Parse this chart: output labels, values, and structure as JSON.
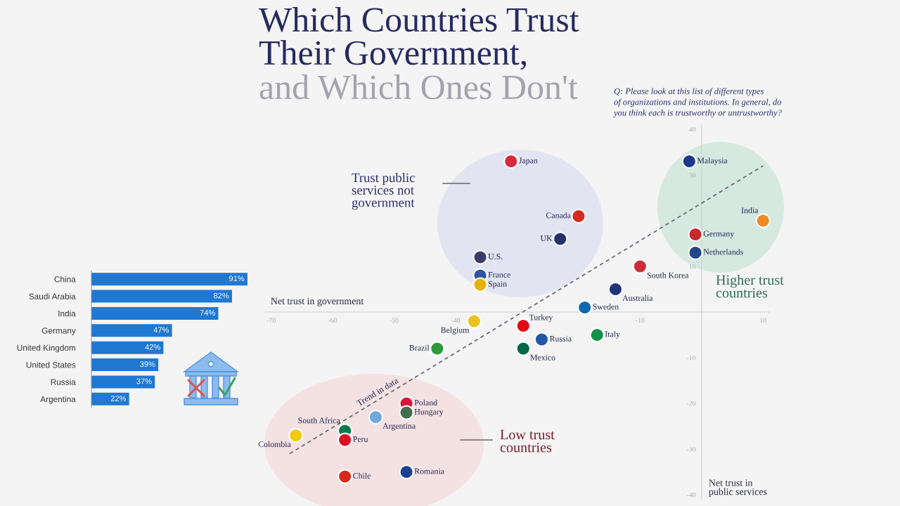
{
  "chart_data": [
    {
      "type": "scatter",
      "title": "Which Countries Trust\nTheir Government,",
      "subtitle": "and Which Ones Don't",
      "xlabel": "Net trust in government",
      "ylabel": "Net trust in\npublic services",
      "xlim": [
        -71,
        11
      ],
      "ylim": [
        -41,
        41
      ],
      "xticks": [
        -70,
        -60,
        -50,
        -40,
        -10,
        10
      ],
      "yticks": [
        -40,
        -30,
        -20,
        -10,
        10,
        30,
        40
      ],
      "marker": "circle",
      "series": [
        {
          "name": "Japan",
          "color": "#d8283a",
          "x": [
            -31
          ],
          "values": [
            33
          ]
        },
        {
          "name": "Malaysia",
          "color": "#1d3a8a",
          "x": [
            -2
          ],
          "values": [
            33
          ]
        },
        {
          "name": "Canada",
          "color": "#d52b1e",
          "x": [
            -20
          ],
          "values": [
            21
          ]
        },
        {
          "name": "UK",
          "color": "#24336b",
          "x": [
            -23
          ],
          "values": [
            16
          ]
        },
        {
          "name": "India",
          "color": "#f08a24",
          "x": [
            10
          ],
          "values": [
            20
          ]
        },
        {
          "name": "Germany",
          "color": "#c9282d",
          "x": [
            -1
          ],
          "values": [
            17
          ]
        },
        {
          "name": "U.S.",
          "color": "#3c3b6e",
          "x": [
            -36
          ],
          "values": [
            12
          ]
        },
        {
          "name": "France",
          "color": "#2e55a6",
          "x": [
            -36
          ],
          "values": [
            8
          ]
        },
        {
          "name": "Netherlands",
          "color": "#21468b",
          "x": [
            -1
          ],
          "values": [
            13
          ]
        },
        {
          "name": "Spain",
          "color": "#e8b10e",
          "x": [
            -36
          ],
          "values": [
            6
          ]
        },
        {
          "name": "South Korea",
          "color": "#cd2e3a",
          "x": [
            -10
          ],
          "values": [
            10
          ]
        },
        {
          "name": "Australia",
          "color": "#22357a",
          "x": [
            -14
          ],
          "values": [
            5
          ]
        },
        {
          "name": "Sweden",
          "color": "#1168b0",
          "x": [
            -19
          ],
          "values": [
            1
          ]
        },
        {
          "name": "Belgium",
          "color": "#e8c21c",
          "x": [
            -37
          ],
          "values": [
            -2
          ]
        },
        {
          "name": "Turkey",
          "color": "#e30a17",
          "x": [
            -29
          ],
          "values": [
            -3
          ]
        },
        {
          "name": "Italy",
          "color": "#129247",
          "x": [
            -17
          ],
          "values": [
            -5
          ]
        },
        {
          "name": "Russia",
          "color": "#2156a8",
          "x": [
            -26
          ],
          "values": [
            -6
          ]
        },
        {
          "name": "Mexico",
          "color": "#006847",
          "x": [
            -29
          ],
          "values": [
            -8
          ]
        },
        {
          "name": "Brazil",
          "color": "#2f9a3c",
          "x": [
            -43
          ],
          "values": [
            -8
          ]
        },
        {
          "name": "Poland",
          "color": "#dc143c",
          "x": [
            -48
          ],
          "values": [
            -20
          ]
        },
        {
          "name": "Hungary",
          "color": "#436f4d",
          "x": [
            -48
          ],
          "values": [
            -22
          ]
        },
        {
          "name": "Argentina",
          "color": "#6fa8dc",
          "x": [
            -53
          ],
          "values": [
            -23
          ]
        },
        {
          "name": "South Africa",
          "color": "#007a4d",
          "x": [
            -58
          ],
          "values": [
            -26
          ]
        },
        {
          "name": "Peru",
          "color": "#d91023",
          "x": [
            -58
          ],
          "values": [
            -28
          ]
        },
        {
          "name": "Colombia",
          "color": "#f2c811",
          "x": [
            -66
          ],
          "values": [
            -27
          ]
        },
        {
          "name": "Romania",
          "color": "#1d3f8f",
          "x": [
            -48
          ],
          "values": [
            -35
          ]
        },
        {
          "name": "Chile",
          "color": "#d52b1e",
          "x": [
            -58
          ],
          "values": [
            -36
          ]
        },
        {
          "type": "line",
          "color": "#6b6b7a",
          "line_style": "dashed",
          "marker": "none",
          "x": [
            -67,
            10
          ],
          "values": [
            -31,
            32
          ]
        }
      ],
      "annotations": [
        "Q: Please look at this list of different types\nof organizations and institutions. In general, do\nyou think each is trustworthy or untrustworthy?",
        "Trust public\nservices not\ngovernment",
        "Higher trust\ncountries",
        "Low trust\ncountries",
        {
          "text": "Trend in data",
          "x": -52,
          "y": -19
        }
      ]
    },
    {
      "type": "bar",
      "orientation": "horizontal",
      "categories": [
        "China",
        "Saudi Arabia",
        "India",
        "Germany",
        "United Kingdom",
        "United States",
        "Russia",
        "Argentina"
      ],
      "values": [
        91,
        82,
        74,
        47,
        42,
        39,
        37,
        22
      ],
      "color": "#1f78d1",
      "value_labels": [
        "91%",
        "82%",
        "74%",
        "47%",
        "42%",
        "39%",
        "37%",
        "22%"
      ],
      "tick_labels": "y"
    }
  ]
}
